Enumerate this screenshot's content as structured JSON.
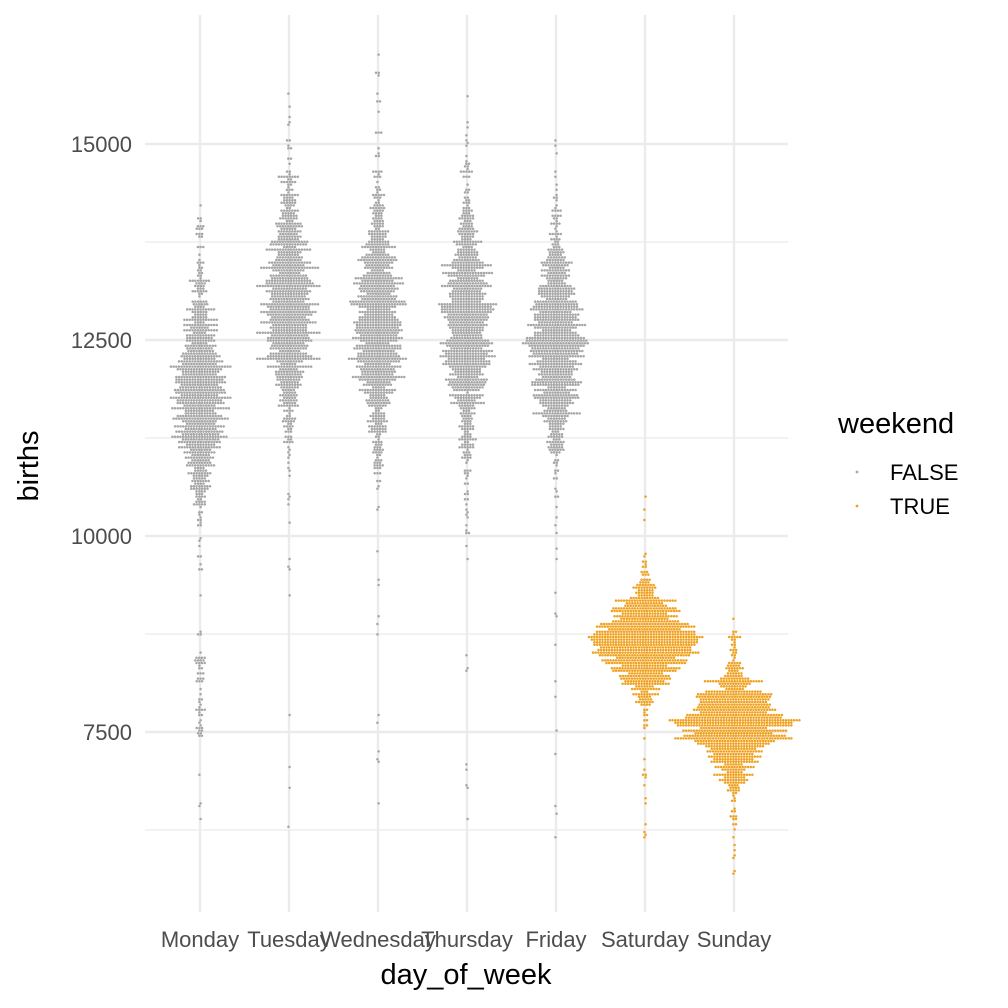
{
  "chart_data": {
    "type": "scatter",
    "subtype": "beeswarm",
    "xlabel": "day_of_week",
    "ylabel": "births",
    "categories": [
      "Monday",
      "Tuesday",
      "Wednesday",
      "Thursday",
      "Friday",
      "Saturday",
      "Sunday"
    ],
    "ylim": [
      5700,
      16200
    ],
    "yticks": [
      7500,
      10000,
      12500,
      15000
    ],
    "ytick_labels": [
      "7500",
      "10000",
      "12500",
      "15000"
    ],
    "grid": true,
    "legend": {
      "title": "weekend",
      "position": "right",
      "entries": [
        {
          "label": "FALSE",
          "color": "#A6A6A6"
        },
        {
          "label": "TRUE",
          "color": "#F0A11F"
        }
      ]
    },
    "series": [
      {
        "category": "Monday",
        "weekend": "FALSE",
        "median": 11850,
        "q1": 11350,
        "q3": 12350,
        "min": 6400,
        "max": 14050,
        "low_cluster": [
          7300,
          8500
        ],
        "n": 1040
      },
      {
        "category": "Tuesday",
        "weekend": "FALSE",
        "median": 12900,
        "q1": 12400,
        "q3": 13450,
        "min": 6300,
        "max": 15650,
        "n": 1040
      },
      {
        "category": "Wednesday",
        "weekend": "FALSE",
        "median": 12700,
        "q1": 12100,
        "q3": 13250,
        "min": 6600,
        "max": 16150,
        "n": 1040
      },
      {
        "category": "Thursday",
        "weekend": "FALSE",
        "median": 12650,
        "q1": 12100,
        "q3": 13200,
        "min": 6400,
        "max": 15600,
        "n": 1040
      },
      {
        "category": "Friday",
        "weekend": "FALSE",
        "median": 12400,
        "q1": 11950,
        "q3": 12900,
        "min": 6150,
        "max": 15050,
        "n": 1040
      },
      {
        "category": "Saturday",
        "weekend": "TRUE",
        "median": 8650,
        "q1": 8400,
        "q3": 8900,
        "min": 6150,
        "max": 10500,
        "n": 1040
      },
      {
        "category": "Sunday",
        "weekend": "TRUE",
        "median": 7600,
        "q1": 7350,
        "q3": 7850,
        "min": 5700,
        "max": 8950,
        "n": 1040
      }
    ]
  }
}
